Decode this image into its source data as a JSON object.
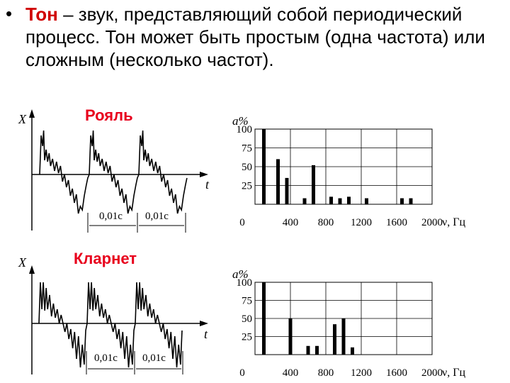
{
  "slide": {
    "bullet": "•",
    "term": "Тон",
    "definition": " – звук, представляющий собой периодический процесс. Тон может быть простым (одна частота) или сложным (несколько частот)."
  },
  "piano": {
    "title": "Рояль",
    "wave_y_label": "X",
    "wave_t_label": "t",
    "period_labels": [
      "0,01с",
      "0,01с"
    ],
    "chart_data": {
      "type": "bar",
      "ylabel": "a%",
      "xlabel": "ν, Гц",
      "yticks": [
        "100",
        "75",
        "50",
        "25"
      ],
      "xticks": [
        "0",
        "400",
        "800",
        "1200",
        "1600",
        "2000"
      ],
      "ylim": [
        0,
        100
      ],
      "xlim": [
        0,
        2000
      ],
      "x": [
        100,
        260,
        360,
        560,
        660,
        860,
        960,
        1060,
        1260,
        1660,
        1760
      ],
      "values": [
        100,
        60,
        35,
        8,
        52,
        10,
        8,
        10,
        8,
        8,
        8
      ]
    }
  },
  "clarinet": {
    "title": "Кларнет",
    "wave_y_label": "X",
    "wave_t_label": "t",
    "period_labels": [
      "0,01с",
      "0,01с"
    ],
    "chart_data": {
      "type": "bar",
      "ylabel": "a%",
      "xlabel": "ν, Гц",
      "yticks": [
        "100",
        "75",
        "50",
        "25"
      ],
      "xticks": [
        "0",
        "400",
        "800",
        "1200",
        "1600",
        "2000"
      ],
      "ylim": [
        0,
        100
      ],
      "xlim": [
        0,
        2000
      ],
      "x": [
        100,
        400,
        600,
        700,
        900,
        1000,
        1100
      ],
      "values": [
        100,
        50,
        12,
        12,
        42,
        50,
        10
      ]
    }
  }
}
